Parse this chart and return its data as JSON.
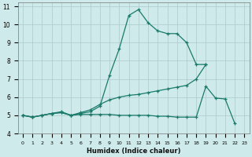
{
  "xlabel": "Humidex (Indice chaleur)",
  "background_color": "#ceeaea",
  "grid_color": "#adc8c8",
  "line_color": "#1a7a6a",
  "xlim": [
    -0.5,
    23.5
  ],
  "ylim": [
    4,
    11.2
  ],
  "line1_x": [
    0,
    1,
    2,
    3,
    4,
    5,
    6,
    7,
    8,
    9,
    10,
    11,
    12,
    13,
    14,
    15,
    16,
    17,
    18,
    19
  ],
  "line1_y": [
    5.0,
    4.9,
    5.0,
    5.1,
    5.2,
    5.0,
    5.1,
    5.2,
    5.5,
    7.2,
    8.65,
    10.5,
    10.82,
    10.1,
    9.65,
    9.5,
    9.5,
    9.0,
    7.8,
    7.8
  ],
  "line2_x": [
    0,
    1,
    2,
    3,
    4,
    5,
    6,
    7,
    8,
    9,
    10,
    11,
    12,
    13,
    14,
    15,
    16,
    17,
    18,
    19
  ],
  "line2_y": [
    5.0,
    4.9,
    5.0,
    5.1,
    5.15,
    5.0,
    5.15,
    5.3,
    5.6,
    5.85,
    6.0,
    6.1,
    6.15,
    6.25,
    6.35,
    6.45,
    6.55,
    6.65,
    7.0,
    7.8
  ],
  "line3_x": [
    0,
    1,
    2,
    3,
    4,
    5,
    6,
    7,
    8,
    9,
    10,
    11,
    12,
    13,
    14,
    15,
    16,
    17,
    18,
    19,
    20,
    21,
    22
  ],
  "line3_y": [
    5.0,
    4.9,
    5.0,
    5.1,
    5.15,
    5.0,
    5.05,
    5.05,
    5.05,
    5.05,
    5.0,
    5.0,
    5.0,
    5.0,
    4.95,
    4.95,
    4.9,
    4.9,
    4.9,
    6.6,
    5.95,
    5.9,
    4.55
  ]
}
